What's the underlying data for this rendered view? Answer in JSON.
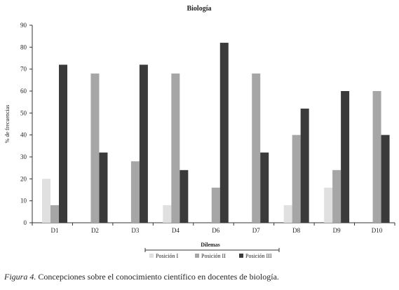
{
  "chart_data": {
    "type": "bar",
    "title": "Biología",
    "xlabel": "Dilemas",
    "ylabel": "% de frecuencias",
    "ylim": [
      0,
      90
    ],
    "yticks": [
      0,
      10,
      20,
      30,
      40,
      50,
      60,
      70,
      80,
      90
    ],
    "grid": false,
    "legend_position": "bottom",
    "categories": [
      "D1",
      "D2",
      "D3",
      "D4",
      "D6",
      "D7",
      "D8",
      "D9",
      "D10"
    ],
    "series": [
      {
        "name": "Posición I",
        "color": "#e0e0e0",
        "values": [
          20,
          0,
          0,
          8,
          0,
          0,
          8,
          16,
          0
        ]
      },
      {
        "name": "Posición II",
        "color": "#a6a6a6",
        "values": [
          8,
          68,
          28,
          68,
          16,
          68,
          40,
          24,
          60
        ]
      },
      {
        "name": "Posición III",
        "color": "#3a3a3a",
        "values": [
          72,
          32,
          72,
          24,
          82,
          32,
          52,
          60,
          40
        ]
      }
    ]
  },
  "caption": {
    "label": "Figura 4.",
    "text": " Concepciones sobre el conocimiento científico en docentes de biología."
  }
}
